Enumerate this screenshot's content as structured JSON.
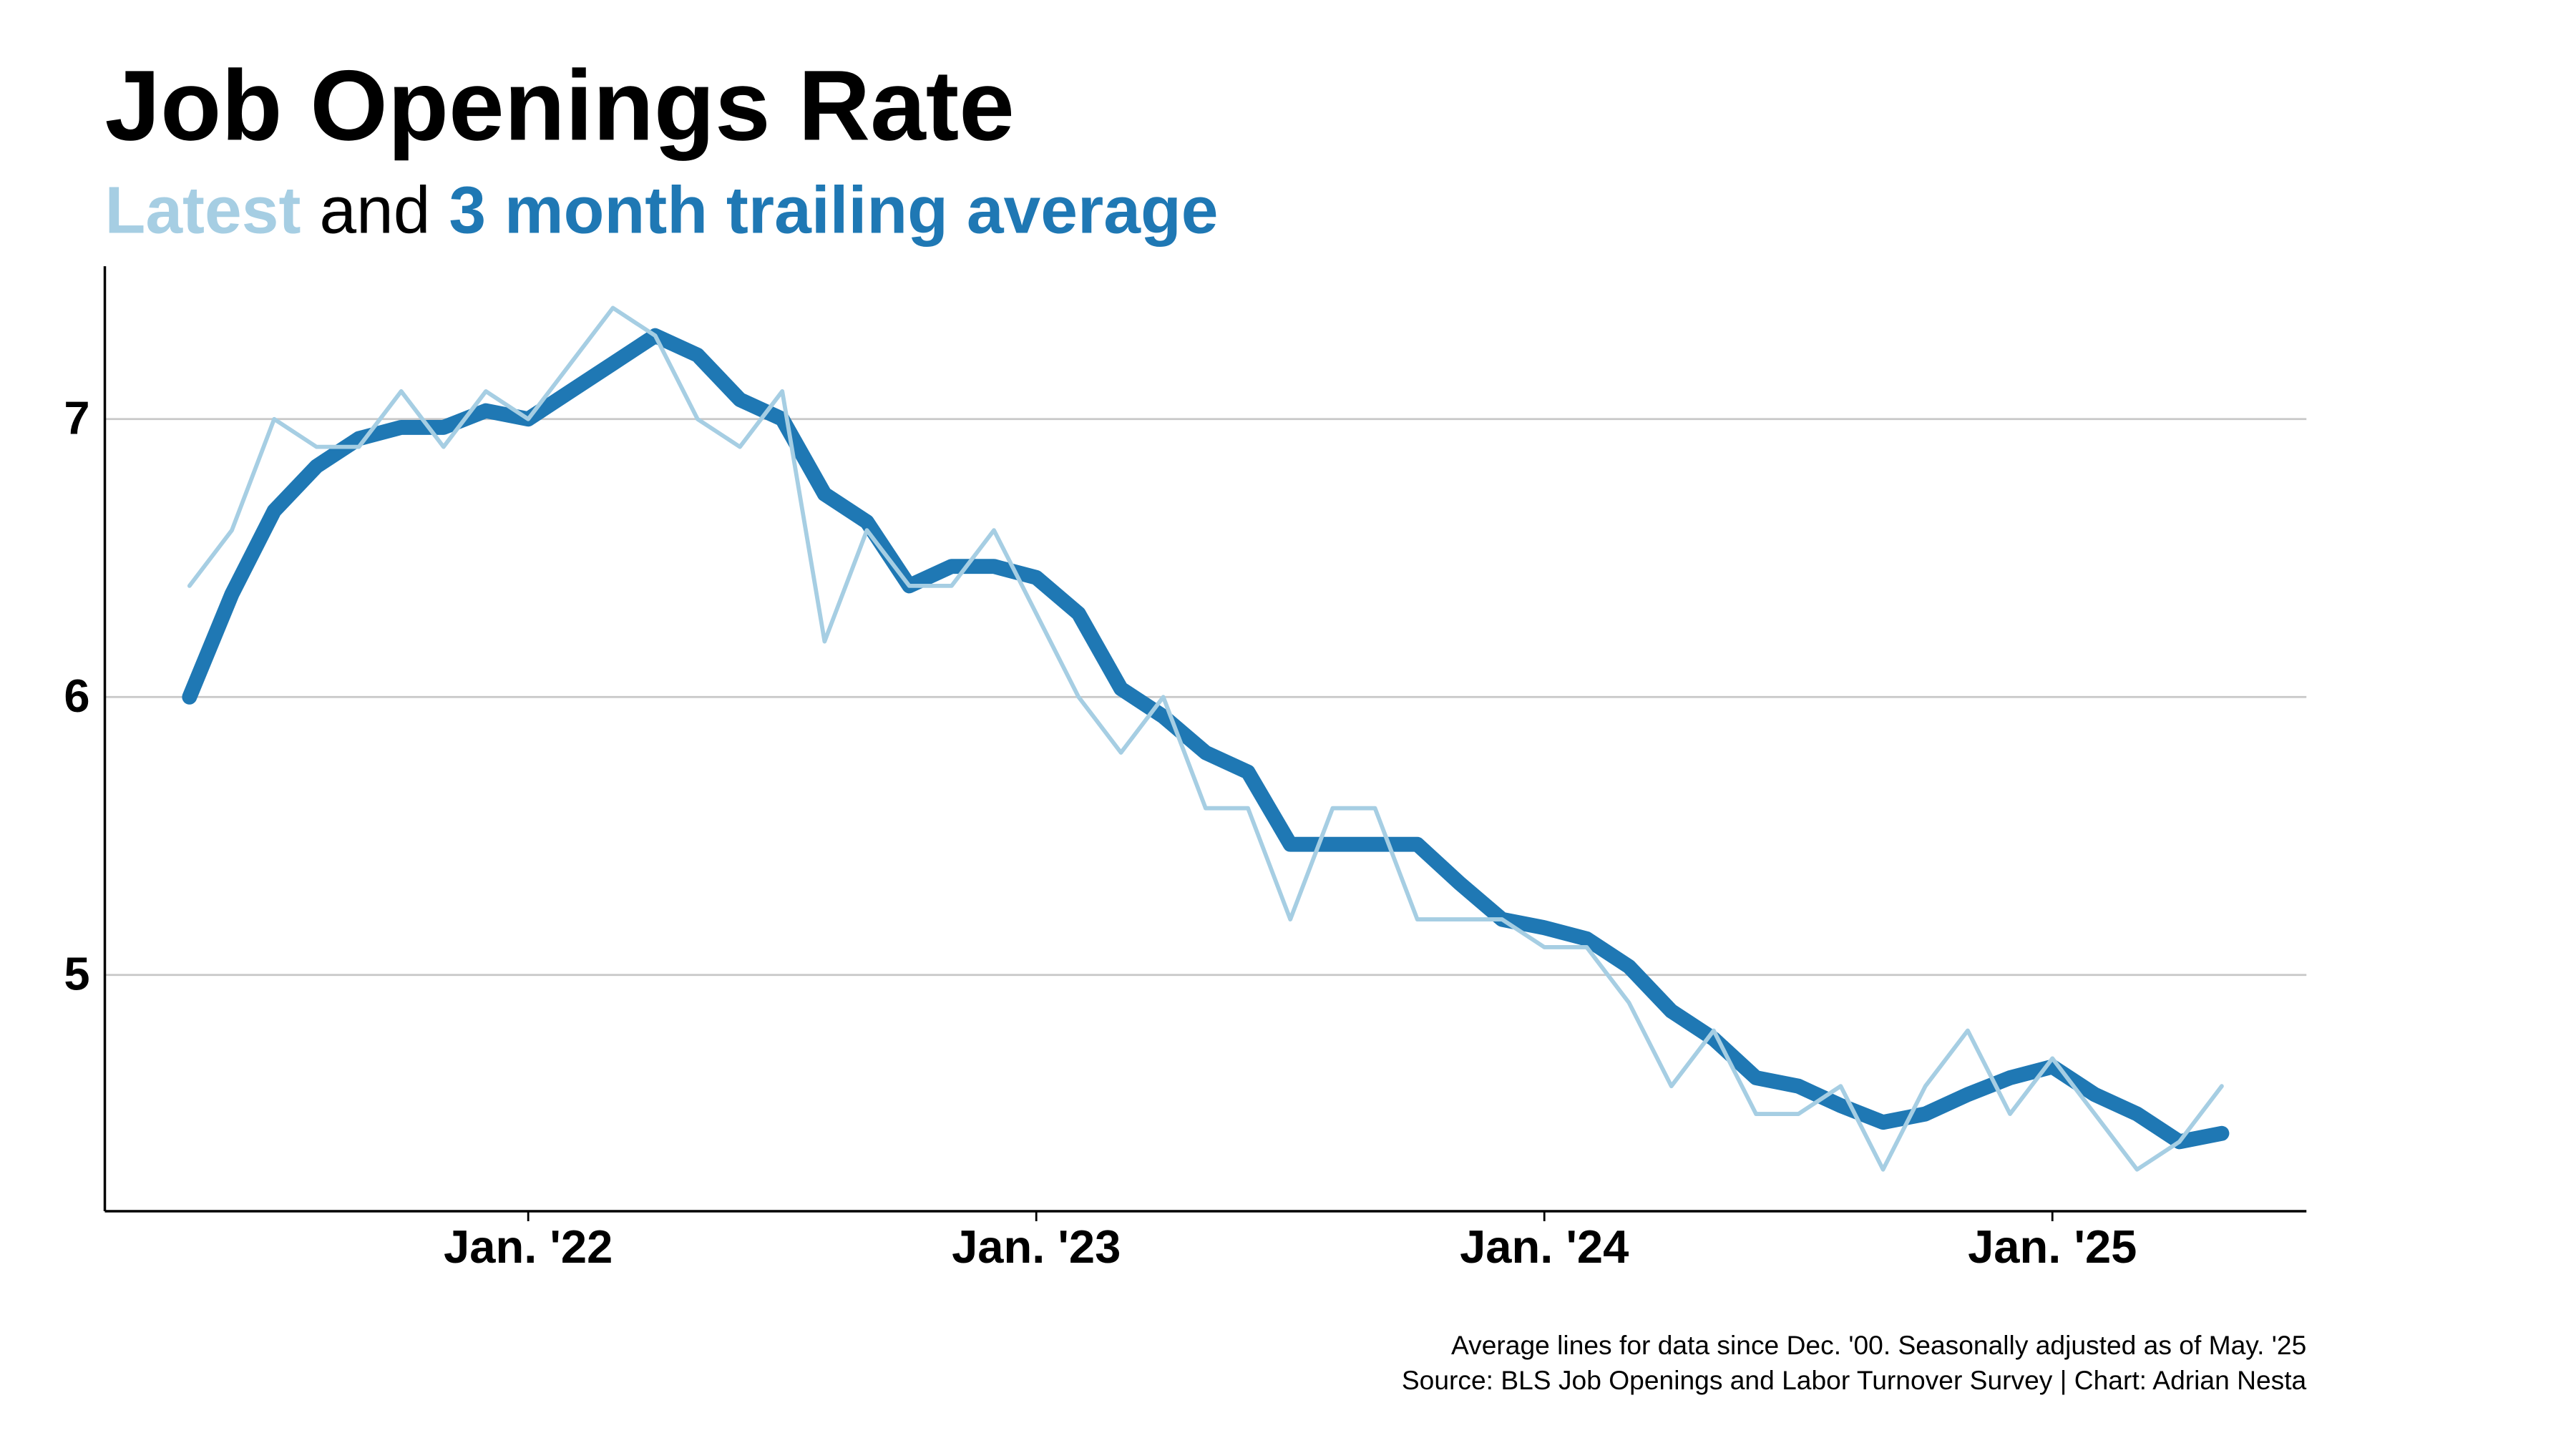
{
  "chart_data": {
    "type": "line",
    "title": "Job Openings Rate",
    "subtitle_joiner": "and",
    "notes": [
      "Average lines for data since Dec. '00. Seasonally adjusted as of May. '25",
      "Source: BLS Job Openings and Labor Turnover Survey | Chart: Adrian Nesta"
    ],
    "x": [
      "2021-05",
      "2021-06",
      "2021-07",
      "2021-08",
      "2021-09",
      "2021-10",
      "2021-11",
      "2021-12",
      "2022-01",
      "2022-02",
      "2022-03",
      "2022-04",
      "2022-05",
      "2022-06",
      "2022-07",
      "2022-08",
      "2022-09",
      "2022-10",
      "2022-11",
      "2022-12",
      "2023-01",
      "2023-02",
      "2023-03",
      "2023-04",
      "2023-05",
      "2023-06",
      "2023-07",
      "2023-08",
      "2023-09",
      "2023-10",
      "2023-11",
      "2023-12",
      "2024-01",
      "2024-02",
      "2024-03",
      "2024-04",
      "2024-05",
      "2024-06",
      "2024-07",
      "2024-08",
      "2024-09",
      "2024-10",
      "2024-11",
      "2024-12",
      "2025-01",
      "2025-02",
      "2025-03",
      "2025-04",
      "2025-05"
    ],
    "series": [
      {
        "name": "Latest",
        "color": "#a6cee3",
        "width": 2.5,
        "values": [
          6.4,
          6.6,
          7.0,
          6.9,
          6.9,
          7.1,
          6.9,
          7.1,
          7.0,
          7.2,
          7.4,
          7.3,
          7.0,
          6.9,
          7.1,
          6.2,
          6.6,
          6.4,
          6.4,
          6.6,
          6.3,
          6.0,
          5.8,
          6.0,
          5.6,
          5.6,
          5.2,
          5.6,
          5.6,
          5.2,
          5.2,
          5.2,
          5.1,
          5.1,
          4.9,
          4.6,
          4.8,
          4.5,
          4.5,
          4.6,
          4.3,
          4.6,
          4.8,
          4.5,
          4.7,
          4.5,
          4.3,
          4.4,
          4.6
        ]
      },
      {
        "name": "3 month trailing average",
        "color": "#1f78b4",
        "width": 9,
        "values": [
          6.0,
          6.37,
          6.67,
          6.83,
          6.93,
          6.97,
          6.97,
          7.03,
          7.0,
          7.1,
          7.2,
          7.3,
          7.23,
          7.07,
          7.0,
          6.73,
          6.63,
          6.4,
          6.47,
          6.47,
          6.43,
          6.3,
          6.03,
          5.93,
          5.8,
          5.73,
          5.47,
          5.47,
          5.47,
          5.47,
          5.33,
          5.2,
          5.17,
          5.13,
          5.03,
          4.87,
          4.77,
          4.63,
          4.6,
          4.53,
          4.47,
          4.5,
          4.57,
          4.63,
          4.67,
          4.57,
          4.5,
          4.4,
          4.43
        ]
      }
    ],
    "xlim": [
      "2021-03",
      "2025-07"
    ],
    "xticks": [
      {
        "value": "2022-01",
        "label": "Jan. '22"
      },
      {
        "value": "2023-01",
        "label": "Jan. '23"
      },
      {
        "value": "2024-01",
        "label": "Jan. '24"
      },
      {
        "value": "2025-01",
        "label": "Jan. '25"
      }
    ],
    "ylim": [
      4.15,
      7.55
    ],
    "yticks": [
      5,
      6,
      7
    ],
    "grid": true
  }
}
